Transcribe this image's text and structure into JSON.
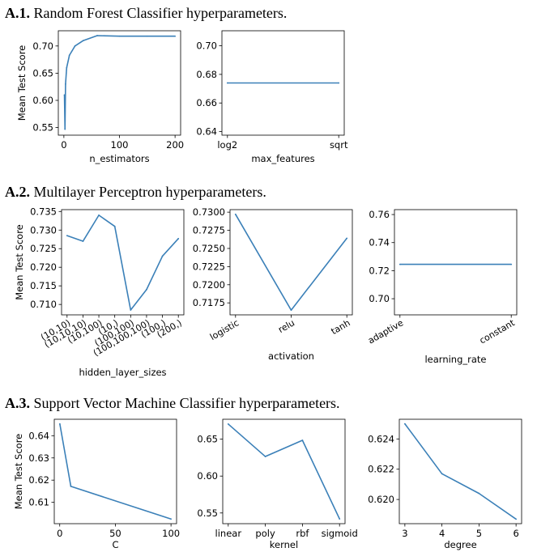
{
  "sections": [
    {
      "number": "A.1.",
      "title": "Random Forest Classifier hyperparameters."
    },
    {
      "number": "A.2.",
      "title": "Multilayer Perceptron hyperparameters."
    },
    {
      "number": "A.3.",
      "title": "Support Vector Machine Classifier hyperparameters."
    }
  ],
  "chart_data": [
    {
      "id": "rf-n-estimators",
      "type": "line",
      "x": [
        1,
        2,
        3,
        5,
        10,
        20,
        35,
        60,
        100,
        150,
        200
      ],
      "y": [
        0.61,
        0.547,
        0.63,
        0.66,
        0.683,
        0.7,
        0.71,
        0.719,
        0.718,
        0.718,
        0.718
      ],
      "xlabel": "n_estimators",
      "ylabel": "Mean Test Score",
      "xticks": [
        0,
        100,
        200
      ],
      "xtick_labels": [
        "0",
        "100",
        "200"
      ],
      "yticks": [
        0.55,
        0.6,
        0.65,
        0.7
      ],
      "ytick_labels": [
        "0.55",
        "0.60",
        "0.65",
        "0.70"
      ],
      "xlim": [
        -10,
        210
      ],
      "ylim": [
        0.536,
        0.728
      ],
      "grid": false
    },
    {
      "id": "rf-max-features",
      "type": "line",
      "categories": [
        "log2",
        "sqrt"
      ],
      "y": [
        0.674,
        0.674
      ],
      "xlabel": "max_features",
      "ylabel": "",
      "yticks": [
        0.64,
        0.66,
        0.68,
        0.7
      ],
      "ytick_labels": [
        "0.64",
        "0.66",
        "0.68",
        "0.70"
      ],
      "ylim": [
        0.6375,
        0.7105
      ],
      "grid": false
    },
    {
      "id": "mlp-hidden-layer-sizes",
      "type": "line",
      "categories": [
        "(10,10)",
        "(10,10,10)",
        "(10,100)",
        "(10,)",
        "(100,100)",
        "(100,100,100)",
        "(100,)",
        "(200,)"
      ],
      "y": [
        0.7285,
        0.727,
        0.734,
        0.731,
        0.7085,
        0.714,
        0.723,
        0.7277
      ],
      "xlabel": "hidden_layer_sizes",
      "ylabel": "Mean Test Score",
      "yticks": [
        0.71,
        0.715,
        0.72,
        0.725,
        0.73,
        0.735
      ],
      "ytick_labels": [
        "0.710",
        "0.715",
        "0.720",
        "0.725",
        "0.730",
        "0.735"
      ],
      "ylim": [
        0.7072,
        0.7355
      ],
      "grid": false
    },
    {
      "id": "mlp-activation",
      "type": "line",
      "categories": [
        "logistic",
        "relu",
        "tanh"
      ],
      "y": [
        0.7297,
        0.7165,
        0.7264
      ],
      "xlabel": "activation",
      "ylabel": "",
      "yticks": [
        0.7175,
        0.72,
        0.7225,
        0.725,
        0.7275,
        0.73
      ],
      "ytick_labels": [
        "0.7175",
        "0.7200",
        "0.7225",
        "0.7250",
        "0.7275",
        "0.7300"
      ],
      "ylim": [
        0.71585,
        0.73035
      ],
      "grid": false
    },
    {
      "id": "mlp-learning-rate",
      "type": "line",
      "categories": [
        "adaptive",
        "constant"
      ],
      "y": [
        0.7245,
        0.7245
      ],
      "xlabel": "learning_rate",
      "ylabel": "",
      "yticks": [
        0.7,
        0.72,
        0.74,
        0.76
      ],
      "ytick_labels": [
        "0.70",
        "0.72",
        "0.74",
        "0.76"
      ],
      "ylim": [
        0.6885,
        0.7635
      ],
      "grid": false
    },
    {
      "id": "svm-c",
      "type": "line",
      "x": [
        0.1,
        10,
        100
      ],
      "y": [
        0.6453,
        0.6172,
        0.6025
      ],
      "xlabel": "C",
      "ylabel": "Mean Test Score",
      "xticks": [
        0,
        50,
        100
      ],
      "xtick_labels": [
        "0",
        "50",
        "100"
      ],
      "yticks": [
        0.61,
        0.62,
        0.63,
        0.64
      ],
      "ytick_labels": [
        "0.61",
        "0.62",
        "0.63",
        "0.64"
      ],
      "xlim": [
        -4.9,
        105
      ],
      "ylim": [
        0.6004,
        0.6474
      ],
      "grid": false
    },
    {
      "id": "svm-kernel",
      "type": "line",
      "categories": [
        "linear",
        "poly",
        "rbf",
        "sigmoid"
      ],
      "y": [
        0.6705,
        0.6265,
        0.6485,
        0.542
      ],
      "xlabel": "kernel",
      "ylabel": "",
      "yticks": [
        0.55,
        0.6,
        0.65
      ],
      "ytick_labels": [
        "0.55",
        "0.60",
        "0.65"
      ],
      "ylim": [
        0.5355,
        0.677
      ],
      "grid": false
    },
    {
      "id": "svm-degree",
      "type": "line",
      "x": [
        3,
        4,
        5,
        6
      ],
      "y": [
        0.625,
        0.6217,
        0.6204,
        0.6187
      ],
      "xlabel": "degree",
      "ylabel": "",
      "xticks": [
        3,
        4,
        5,
        6
      ],
      "xtick_labels": [
        "3",
        "4",
        "5",
        "6"
      ],
      "yticks": [
        0.62,
        0.622,
        0.624
      ],
      "ytick_labels": [
        "0.620",
        "0.622",
        "0.624"
      ],
      "xlim": [
        2.85,
        6.15
      ],
      "ylim": [
        0.6184,
        0.6253
      ],
      "grid": false
    }
  ],
  "colors": {
    "series": "#3b80b8",
    "axis": "#000000",
    "text": "#000000"
  }
}
